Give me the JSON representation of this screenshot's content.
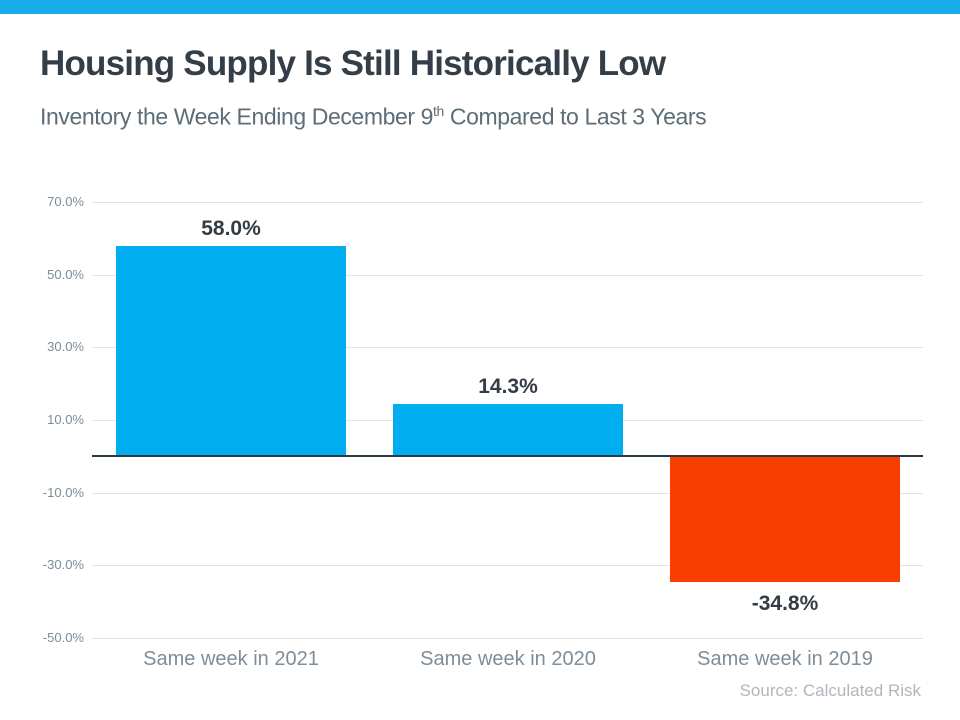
{
  "banner": {
    "color": "#18ADEA"
  },
  "header": {
    "title": "Housing Supply Is Still Historically Low",
    "subtitle_prefix": "Inventory the Week Ending December 9",
    "subtitle_sup": "th",
    "subtitle_suffix": " Compared to Last 3 Years"
  },
  "chart_data": {
    "type": "bar",
    "title": "Housing Supply Is Still Historically Low",
    "subtitle": "Inventory the Week Ending December 9th Compared to Last 3 Years",
    "categories": [
      "Same week in 2021",
      "Same week in 2020",
      "Same week in 2019"
    ],
    "values": [
      58.0,
      14.3,
      -34.8
    ],
    "value_labels": [
      "58.0%",
      "14.3%",
      "-34.8%"
    ],
    "bar_colors": [
      "#00AEEF",
      "#00AEEF",
      "#F93E01"
    ],
    "positive_color": "#00AEEF",
    "negative_color": "#F93E01",
    "ylim": [
      -50,
      70
    ],
    "yticks": [
      70,
      50,
      30,
      10,
      -10,
      -30,
      -50
    ],
    "ytick_labels": [
      "70.0%",
      "50.0%",
      "30.0%",
      "10.0%",
      "-10.0%",
      "-30.0%",
      "-50.0%"
    ],
    "grid": true,
    "zero_line": true,
    "legend_position": "none",
    "xlabel": "",
    "ylabel": ""
  },
  "footer": {
    "source": "Source: Calculated Risk"
  }
}
